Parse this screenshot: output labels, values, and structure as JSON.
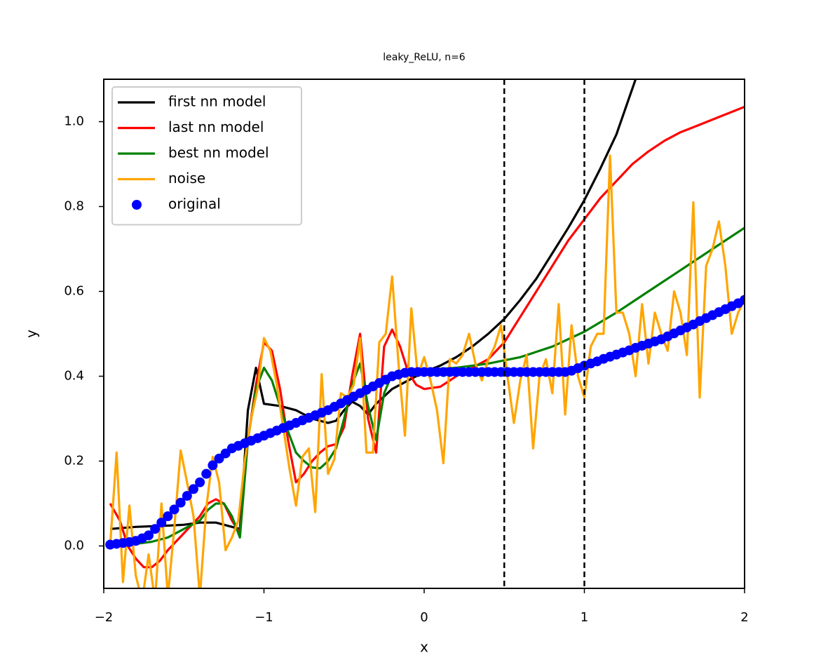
{
  "chart_data": {
    "type": "line",
    "title": "leaky_ReLU, n=6",
    "xlabel": "x",
    "ylabel": "y",
    "xlim": [
      -2,
      2
    ],
    "ylim": [
      -0.1,
      1.1
    ],
    "xticks": [
      {
        "value": -2,
        "label": "−2"
      },
      {
        "value": -1,
        "label": "−1"
      },
      0,
      1,
      2
    ],
    "yticks": [
      {
        "value": 0,
        "label": "0.0"
      },
      0.2,
      0.4,
      0.6,
      0.8,
      {
        "value": 1,
        "label": "1.0"
      }
    ],
    "vlines": [
      0.5,
      1
    ],
    "legend": "upper left",
    "x": [
      -1.96,
      -1.92,
      -1.88,
      -1.84,
      -1.8,
      -1.76,
      -1.72,
      -1.68,
      -1.64,
      -1.6,
      -1.56,
      -1.52,
      -1.48,
      -1.44,
      -1.4,
      -1.36,
      -1.32,
      -1.28,
      -1.24,
      -1.2,
      -1.16,
      -1.12,
      -1.08,
      -1.04,
      -1.0,
      -0.96,
      -0.92,
      -0.88,
      -0.84,
      -0.8,
      -0.76,
      -0.72,
      -0.68,
      -0.64,
      -0.6,
      -0.56,
      -0.52,
      -0.48,
      -0.44,
      -0.4,
      -0.36,
      -0.32,
      -0.28,
      -0.24,
      -0.2,
      -0.16,
      -0.12,
      -0.08,
      -0.04,
      0.0,
      0.04,
      0.08,
      0.12,
      0.16,
      0.2,
      0.24,
      0.28,
      0.32,
      0.36,
      0.4,
      0.44,
      0.48,
      0.52,
      0.56,
      0.6,
      0.64,
      0.68,
      0.72,
      0.76,
      0.8,
      0.84,
      0.88,
      0.92,
      0.96,
      1.0,
      1.04,
      1.08,
      1.12,
      1.16,
      1.2,
      1.24,
      1.28,
      1.32,
      1.36,
      1.4,
      1.44,
      1.48,
      1.52,
      1.56,
      1.6,
      1.64,
      1.68,
      1.72,
      1.76,
      1.8,
      1.84,
      1.88,
      1.92,
      1.96,
      2.0
    ],
    "series": [
      {
        "name": "first nn model",
        "color": "#000000",
        "style": "line",
        "x": [
          -1.96,
          -1.8,
          -1.6,
          -1.5,
          -1.4,
          -1.3,
          -1.2,
          -1.15,
          -1.1,
          -1.05,
          -1.0,
          -0.9,
          -0.8,
          -0.7,
          -0.6,
          -0.55,
          -0.5,
          -0.45,
          -0.4,
          -0.35,
          -0.3,
          -0.2,
          -0.1,
          0,
          0.1,
          0.2,
          0.3,
          0.4,
          0.5,
          0.6,
          0.7,
          0.8,
          0.9,
          1.0,
          1.1,
          1.2,
          1.32
        ],
        "values": [
          0.04,
          0.045,
          0.048,
          0.05,
          0.055,
          0.055,
          0.045,
          0.04,
          0.32,
          0.42,
          0.335,
          0.33,
          0.32,
          0.3,
          0.29,
          0.295,
          0.32,
          0.34,
          0.33,
          0.31,
          0.335,
          0.37,
          0.39,
          0.41,
          0.425,
          0.445,
          0.47,
          0.5,
          0.535,
          0.58,
          0.63,
          0.69,
          0.75,
          0.815,
          0.89,
          0.97,
          1.1
        ]
      },
      {
        "name": "last nn model",
        "color": "#ff0000",
        "style": "line",
        "x": [
          -1.96,
          -1.9,
          -1.85,
          -1.8,
          -1.75,
          -1.7,
          -1.65,
          -1.6,
          -1.5,
          -1.4,
          -1.35,
          -1.3,
          -1.25,
          -1.2,
          -1.15,
          -1.1,
          -1.05,
          -1.0,
          -0.95,
          -0.9,
          -0.85,
          -0.8,
          -0.75,
          -0.7,
          -0.65,
          -0.6,
          -0.55,
          -0.5,
          -0.45,
          -0.4,
          -0.35,
          -0.3,
          -0.25,
          -0.2,
          -0.15,
          -0.1,
          -0.05,
          0,
          0.1,
          0.2,
          0.3,
          0.4,
          0.5,
          0.6,
          0.7,
          0.8,
          0.9,
          1.0,
          1.1,
          1.2,
          1.3,
          1.4,
          1.5,
          1.6,
          1.7,
          1.8,
          1.9,
          2.0
        ],
        "values": [
          0.1,
          0.06,
          0.0,
          -0.03,
          -0.05,
          -0.05,
          -0.035,
          -0.01,
          0.03,
          0.07,
          0.1,
          0.11,
          0.1,
          0.06,
          0.03,
          0.25,
          0.38,
          0.48,
          0.46,
          0.37,
          0.25,
          0.15,
          0.17,
          0.2,
          0.22,
          0.235,
          0.24,
          0.28,
          0.4,
          0.5,
          0.3,
          0.22,
          0.47,
          0.51,
          0.47,
          0.41,
          0.38,
          0.37,
          0.375,
          0.4,
          0.42,
          0.44,
          0.48,
          0.54,
          0.6,
          0.66,
          0.72,
          0.77,
          0.82,
          0.86,
          0.9,
          0.93,
          0.955,
          0.975,
          0.99,
          1.005,
          1.02,
          1.035
        ]
      },
      {
        "name": "best nn model",
        "color": "#008000",
        "style": "line",
        "x": [
          -1.8,
          -1.7,
          -1.6,
          -1.5,
          -1.4,
          -1.35,
          -1.3,
          -1.25,
          -1.2,
          -1.15,
          -1.1,
          -1.05,
          -1.0,
          -0.95,
          -0.9,
          -0.85,
          -0.8,
          -0.75,
          -0.7,
          -0.65,
          -0.6,
          -0.55,
          -0.5,
          -0.45,
          -0.4,
          -0.35,
          -0.3,
          -0.25,
          -0.2,
          -0.1,
          0,
          0.2,
          0.4,
          0.6,
          0.8,
          1.0,
          1.2,
          1.4,
          1.6,
          1.8,
          2.0
        ],
        "values": [
          0.005,
          0.01,
          0.02,
          0.04,
          0.06,
          0.085,
          0.1,
          0.1,
          0.07,
          0.02,
          0.25,
          0.37,
          0.42,
          0.39,
          0.33,
          0.27,
          0.22,
          0.2,
          0.185,
          0.183,
          0.2,
          0.23,
          0.3,
          0.38,
          0.43,
          0.33,
          0.25,
          0.36,
          0.405,
          0.41,
          0.415,
          0.42,
          0.43,
          0.445,
          0.47,
          0.505,
          0.55,
          0.6,
          0.65,
          0.7,
          0.75
        ]
      },
      {
        "name": "noise",
        "color": "#ffa500",
        "style": "line",
        "values": [
          0.0,
          0.22,
          -0.085,
          0.095,
          -0.07,
          -0.13,
          -0.02,
          -0.13,
          0.1,
          -0.12,
          0.04,
          0.225,
          0.15,
          0.07,
          -0.12,
          0.09,
          0.21,
          0.15,
          -0.01,
          0.02,
          0.06,
          0.2,
          0.3,
          0.37,
          0.49,
          0.46,
          0.38,
          0.28,
          0.18,
          0.095,
          0.21,
          0.23,
          0.08,
          0.405,
          0.17,
          0.205,
          0.36,
          0.35,
          0.38,
          0.49,
          0.22,
          0.22,
          0.48,
          0.5,
          0.635,
          0.43,
          0.26,
          0.56,
          0.4,
          0.445,
          0.39,
          0.32,
          0.195,
          0.44,
          0.43,
          0.45,
          0.5,
          0.43,
          0.39,
          0.44,
          0.47,
          0.52,
          0.4,
          0.29,
          0.39,
          0.45,
          0.23,
          0.4,
          0.44,
          0.36,
          0.57,
          0.31,
          0.52,
          0.4,
          0.35,
          0.47,
          0.5,
          0.5,
          0.92,
          0.55,
          0.55,
          0.5,
          0.4,
          0.57,
          0.43,
          0.55,
          0.5,
          0.46,
          0.6,
          0.55,
          0.45,
          0.81,
          0.35,
          0.66,
          0.7,
          0.765,
          0.66,
          0.5,
          0.55,
          0.58
        ]
      },
      {
        "name": "original",
        "color": "#0000ff",
        "style": "dots",
        "values": [
          0.003,
          0.005,
          0.007,
          0.009,
          0.012,
          0.018,
          0.025,
          0.04,
          0.055,
          0.07,
          0.086,
          0.102,
          0.118,
          0.134,
          0.15,
          0.17,
          0.19,
          0.206,
          0.218,
          0.23,
          0.236,
          0.242,
          0.248,
          0.254,
          0.26,
          0.266,
          0.272,
          0.278,
          0.284,
          0.29,
          0.296,
          0.302,
          0.308,
          0.314,
          0.32,
          0.328,
          0.336,
          0.344,
          0.352,
          0.36,
          0.368,
          0.376,
          0.384,
          0.392,
          0.4,
          0.404,
          0.408,
          0.41,
          0.41,
          0.41,
          0.41,
          0.41,
          0.41,
          0.41,
          0.41,
          0.41,
          0.41,
          0.41,
          0.41,
          0.41,
          0.41,
          0.41,
          0.41,
          0.41,
          0.41,
          0.41,
          0.41,
          0.41,
          0.41,
          0.41,
          0.41,
          0.41,
          0.413,
          0.419,
          0.425,
          0.43,
          0.435,
          0.441,
          0.446,
          0.451,
          0.456,
          0.461,
          0.467,
          0.472,
          0.477,
          0.482,
          0.487,
          0.494,
          0.501,
          0.508,
          0.515,
          0.522,
          0.53,
          0.537,
          0.544,
          0.551,
          0.558,
          0.565,
          0.572,
          0.58
        ]
      }
    ]
  }
}
